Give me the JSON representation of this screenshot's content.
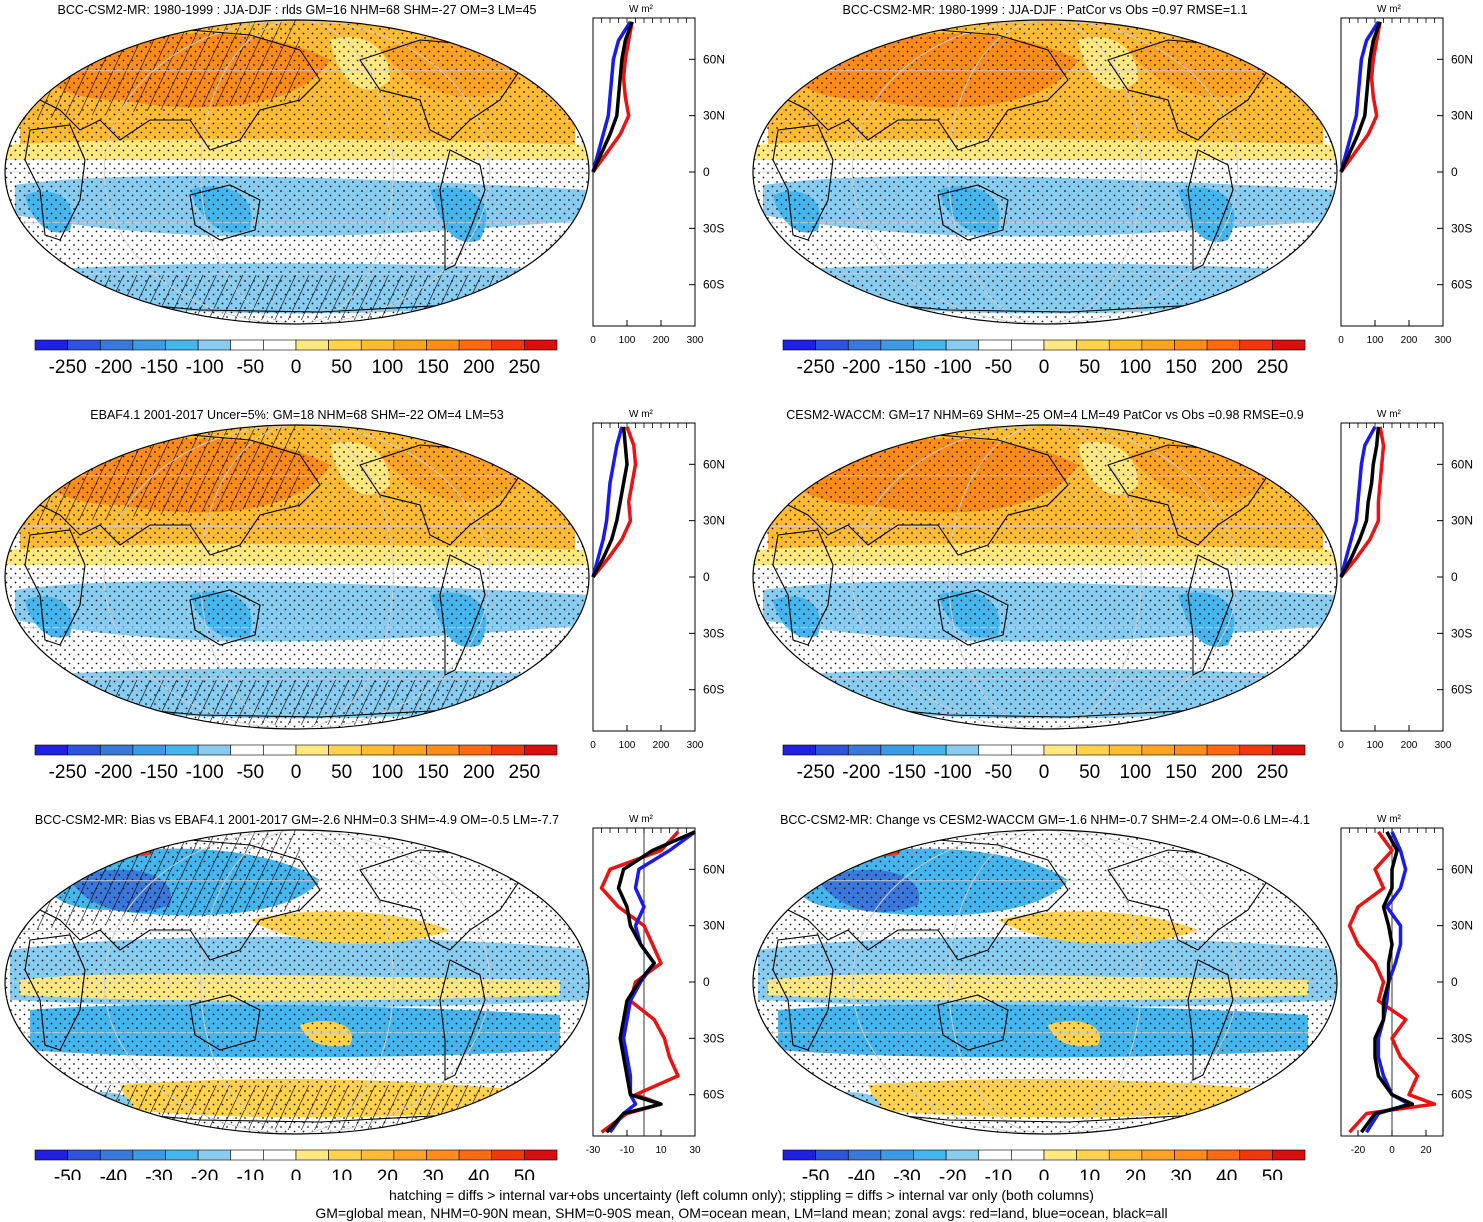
{
  "figure": {
    "footer_line1": "hatching = diffs > internal var+obs uncertainty (left column only); stippling = diffs > internal var only (both columns)",
    "footer_line2": "GM=global mean, NHM=0-90N mean, SHM=0-90S mean, OM=ocean mean, LM=land mean; zonal avgs: red=land, blue=ocean, black=all"
  },
  "colors": {
    "land_line": "#ee1111",
    "ocean_line": "#1a1aee",
    "all_line": "#000000",
    "map_ocean_fill": "#ffffff",
    "continent_outline": "#000000"
  },
  "panels": [
    {
      "title": "BCC-CSM2-MR: 1980-1999 : JJA-DJF : rlds GM=16 NHM=68 SHM=-27 OM=3 LM=45",
      "unit": "W m²",
      "xlim": [
        0,
        300
      ],
      "xticks": [
        "0",
        "100",
        "200",
        "300"
      ],
      "lat_ticks": [
        "60N",
        "30N",
        "0",
        "30S",
        "60S"
      ],
      "cb_labels": [
        "-250",
        "-200",
        "-150",
        "-100",
        "-50",
        "0",
        "50",
        "100",
        "150",
        "200",
        "250"
      ],
      "cb_colors": [
        "#2020e0",
        "#2e53dd",
        "#3a78dc",
        "#3d9be6",
        "#45b5ee",
        "#88ccf0",
        "#ffffff",
        "#ffffff",
        "#ffe880",
        "#ffd24d",
        "#ffbb33",
        "#ffa324",
        "#ff8c1a",
        "#ff6a10",
        "#f0380b",
        "#d90f0f"
      ],
      "zonal": [
        {
          "name": "land",
          "lat": [
            0,
            10,
            20,
            30,
            40,
            50,
            60,
            70,
            80
          ],
          "values": [
            0,
            40,
            80,
            105,
            95,
            90,
            95,
            105,
            115
          ]
        },
        {
          "name": "ocean",
          "lat": [
            0,
            10,
            20,
            30,
            40,
            50,
            60,
            70,
            80
          ],
          "values": [
            0,
            15,
            30,
            45,
            50,
            55,
            60,
            75,
            110
          ]
        },
        {
          "name": "all",
          "lat": [
            0,
            10,
            20,
            30,
            40,
            50,
            60,
            70,
            80
          ],
          "values": [
            0,
            25,
            50,
            70,
            75,
            80,
            85,
            95,
            115
          ]
        }
      ]
    },
    {
      "title": "BCC-CSM2-MR: 1980-1999 : JJA-DJF : PatCor vs Obs =0.97 RMSE=1.1",
      "unit": "W m²",
      "xlim": [
        0,
        300
      ],
      "xticks": [
        "0",
        "100",
        "200",
        "300"
      ],
      "lat_ticks": [
        "60N",
        "30N",
        "0",
        "30S",
        "60S"
      ],
      "cb_labels": [
        "-250",
        "-200",
        "-150",
        "-100",
        "-50",
        "0",
        "50",
        "100",
        "150",
        "200",
        "250"
      ],
      "cb_colors": [
        "#2020e0",
        "#2e53dd",
        "#3a78dc",
        "#3d9be6",
        "#45b5ee",
        "#88ccf0",
        "#ffffff",
        "#ffffff",
        "#ffe880",
        "#ffd24d",
        "#ffbb33",
        "#ffa324",
        "#ff8c1a",
        "#ff6a10",
        "#f0380b",
        "#d90f0f"
      ],
      "zonal": [
        {
          "name": "land",
          "lat": [
            0,
            10,
            20,
            30,
            40,
            50,
            60,
            70,
            80
          ],
          "values": [
            0,
            40,
            80,
            105,
            95,
            90,
            95,
            105,
            115
          ]
        },
        {
          "name": "ocean",
          "lat": [
            0,
            10,
            20,
            30,
            40,
            50,
            60,
            70,
            80
          ],
          "values": [
            0,
            15,
            30,
            45,
            50,
            55,
            60,
            75,
            110
          ]
        },
        {
          "name": "all",
          "lat": [
            0,
            10,
            20,
            30,
            40,
            50,
            60,
            70,
            80
          ],
          "values": [
            0,
            25,
            50,
            70,
            75,
            80,
            85,
            95,
            115
          ]
        }
      ]
    },
    {
      "title": "EBAF4.1 2001-2017 Uncer=5%: GM=18 NHM=68 SHM=-22 OM=4 LM=53",
      "unit": "W m²",
      "xlim": [
        0,
        300
      ],
      "xticks": [
        "0",
        "100",
        "200",
        "300"
      ],
      "lat_ticks": [
        "60N",
        "30N",
        "0",
        "30S",
        "60S"
      ],
      "cb_labels": [
        "-250",
        "-200",
        "-150",
        "-100",
        "-50",
        "0",
        "50",
        "100",
        "150",
        "200",
        "250"
      ],
      "cb_colors": [
        "#2020e0",
        "#2e53dd",
        "#3a78dc",
        "#3d9be6",
        "#45b5ee",
        "#88ccf0",
        "#ffffff",
        "#ffffff",
        "#ffe880",
        "#ffd24d",
        "#ffbb33",
        "#ffa324",
        "#ff8c1a",
        "#ff6a10",
        "#f0380b",
        "#d90f0f"
      ],
      "zonal": [
        {
          "name": "land",
          "lat": [
            0,
            10,
            20,
            30,
            40,
            50,
            60,
            70,
            80
          ],
          "values": [
            0,
            45,
            85,
            110,
            105,
            115,
            125,
            120,
            100
          ]
        },
        {
          "name": "ocean",
          "lat": [
            0,
            10,
            20,
            30,
            40,
            50,
            60,
            70,
            80
          ],
          "values": [
            0,
            15,
            30,
            40,
            45,
            50,
            60,
            70,
            85
          ]
        },
        {
          "name": "all",
          "lat": [
            0,
            10,
            20,
            30,
            40,
            50,
            60,
            70,
            80
          ],
          "values": [
            0,
            30,
            55,
            70,
            80,
            90,
            100,
            95,
            90
          ]
        }
      ]
    },
    {
      "title": "CESM2-WACCM: GM=17 NHM=69 SHM=-25 OM=4 LM=49 PatCor vs Obs =0.98 RMSE=0.9",
      "unit": "W m²",
      "xlim": [
        0,
        300
      ],
      "xticks": [
        "0",
        "100",
        "200",
        "300"
      ],
      "lat_ticks": [
        "60N",
        "30N",
        "0",
        "30S",
        "60S"
      ],
      "cb_labels": [
        "-250",
        "-200",
        "-150",
        "-100",
        "-50",
        "0",
        "50",
        "100",
        "150",
        "200",
        "250"
      ],
      "cb_colors": [
        "#2020e0",
        "#2e53dd",
        "#3a78dc",
        "#3d9be6",
        "#45b5ee",
        "#88ccf0",
        "#ffffff",
        "#ffffff",
        "#ffe880",
        "#ffd24d",
        "#ffbb33",
        "#ffa324",
        "#ff8c1a",
        "#ff6a10",
        "#f0380b",
        "#d90f0f"
      ],
      "zonal": [
        {
          "name": "land",
          "lat": [
            0,
            10,
            20,
            30,
            40,
            50,
            60,
            70,
            80
          ],
          "values": [
            0,
            45,
            85,
            110,
            110,
            115,
            120,
            125,
            115
          ]
        },
        {
          "name": "ocean",
          "lat": [
            0,
            10,
            20,
            30,
            40,
            50,
            60,
            70,
            80
          ],
          "values": [
            0,
            15,
            30,
            45,
            50,
            55,
            60,
            70,
            100
          ]
        },
        {
          "name": "all",
          "lat": [
            0,
            10,
            20,
            30,
            40,
            50,
            60,
            70,
            80
          ],
          "values": [
            0,
            30,
            55,
            75,
            80,
            90,
            95,
            105,
            110
          ]
        }
      ]
    },
    {
      "title": "BCC-CSM2-MR: Bias vs EBAF4.1 2001-2017 GM=-2.6 NHM=0.3 SHM=-4.9 OM=-0.5 LM=-7.7",
      "unit": "W m²",
      "xlim": [
        -30,
        30
      ],
      "xticks": [
        "-30",
        "-10",
        "10",
        "30"
      ],
      "lat_ticks": [
        "60N",
        "30N",
        "0",
        "30S",
        "60S"
      ],
      "cb_labels": [
        "-50",
        "-40",
        "-30",
        "-20",
        "-10",
        "0",
        "10",
        "20",
        "30",
        "40",
        "50"
      ],
      "cb_colors": [
        "#2020e0",
        "#2e53dd",
        "#3a78dc",
        "#3d9be6",
        "#45b5ee",
        "#88ccf0",
        "#ffffff",
        "#ffffff",
        "#ffe880",
        "#ffd24d",
        "#ffbb33",
        "#ffa324",
        "#ff8c1a",
        "#ff6a10",
        "#f0380b",
        "#d90f0f"
      ],
      "zonal": [
        {
          "name": "land",
          "lat": [
            -80,
            -70,
            -65,
            -60,
            -50,
            -40,
            -30,
            -20,
            -10,
            0,
            10,
            20,
            30,
            40,
            50,
            60,
            70,
            80
          ],
          "values": [
            -25,
            -10,
            10,
            -5,
            20,
            15,
            12,
            6,
            -8,
            -5,
            10,
            5,
            0,
            -15,
            -25,
            -20,
            10,
            20
          ]
        },
        {
          "name": "ocean",
          "lat": [
            -80,
            -70,
            -65,
            -60,
            -50,
            -40,
            -30,
            -20,
            -10,
            0,
            10,
            20,
            30,
            40,
            50,
            60,
            70,
            80
          ],
          "values": [
            -20,
            -12,
            -5,
            -8,
            -8,
            -10,
            -12,
            -10,
            -8,
            -2,
            6,
            -2,
            -5,
            0,
            -5,
            -3,
            15,
            30
          ]
        },
        {
          "name": "all",
          "lat": [
            -80,
            -70,
            -65,
            -60,
            -50,
            -40,
            -30,
            -20,
            -10,
            0,
            10,
            20,
            30,
            40,
            50,
            60,
            70,
            80
          ],
          "values": [
            -22,
            -12,
            10,
            -8,
            -10,
            -12,
            -14,
            -12,
            -10,
            -3,
            6,
            -2,
            -8,
            -10,
            -15,
            -12,
            5,
            30
          ]
        }
      ]
    },
    {
      "title": "BCC-CSM2-MR: Change vs CESM2-WACCM GM=-1.6 NHM=-0.7 SHM=-2.4 OM=-0.6 LM=-4.1",
      "unit": "W m²",
      "xlim": [
        -30,
        30
      ],
      "xticks": [
        "-20",
        "0",
        "20"
      ],
      "lat_ticks": [
        "60N",
        "30N",
        "0",
        "30S",
        "60S"
      ],
      "cb_labels": [
        "-50",
        "-40",
        "-30",
        "-20",
        "-10",
        "0",
        "10",
        "20",
        "30",
        "40",
        "50"
      ],
      "cb_colors": [
        "#2020e0",
        "#2e53dd",
        "#3a78dc",
        "#3d9be6",
        "#45b5ee",
        "#88ccf0",
        "#ffffff",
        "#ffffff",
        "#ffe880",
        "#ffd24d",
        "#ffbb33",
        "#ffa324",
        "#ff8c1a",
        "#ff6a10",
        "#f0380b",
        "#d90f0f"
      ],
      "zonal": [
        {
          "name": "land",
          "lat": [
            -80,
            -70,
            -65,
            -60,
            -50,
            -40,
            -30,
            -20,
            -10,
            0,
            10,
            20,
            30,
            40,
            50,
            60,
            70,
            80
          ],
          "values": [
            -25,
            -15,
            25,
            10,
            15,
            5,
            0,
            8,
            -8,
            -5,
            -10,
            -20,
            -25,
            -20,
            -5,
            -10,
            0,
            -8
          ]
        },
        {
          "name": "ocean",
          "lat": [
            -80,
            -70,
            -65,
            -60,
            -50,
            -40,
            -30,
            -20,
            -10,
            0,
            10,
            20,
            30,
            40,
            50,
            60,
            70,
            80
          ],
          "values": [
            -15,
            -8,
            10,
            0,
            -5,
            -8,
            -8,
            -5,
            -3,
            -2,
            2,
            5,
            5,
            -3,
            5,
            8,
            5,
            0
          ]
        },
        {
          "name": "all",
          "lat": [
            -80,
            -70,
            -65,
            -60,
            -50,
            -40,
            -30,
            -20,
            -10,
            0,
            10,
            20,
            30,
            40,
            50,
            60,
            70,
            80
          ],
          "values": [
            -18,
            -10,
            12,
            0,
            -8,
            -10,
            -10,
            -5,
            -5,
            -2,
            -2,
            0,
            -2,
            -5,
            0,
            0,
            3,
            -3
          ]
        }
      ]
    }
  ],
  "chart_data": [
    {
      "type": "heatmap",
      "title": "BCC-CSM2-MR: 1980-1999 : JJA-DJF : rlds GM=16 NHM=68 SHM=-27 OM=3 LM=45",
      "colorbar_ticks": [
        -250,
        -200,
        -150,
        -100,
        -50,
        0,
        50,
        100,
        150,
        200,
        250
      ],
      "stats": {
        "GM": 16,
        "NHM": 68,
        "SHM": -27,
        "OM": 3,
        "LM": 45
      }
    },
    {
      "type": "heatmap",
      "title": "BCC-CSM2-MR: 1980-1999 : JJA-DJF : PatCor vs Obs =0.97 RMSE=1.1",
      "colorbar_ticks": [
        -250,
        -200,
        -150,
        -100,
        -50,
        0,
        50,
        100,
        150,
        200,
        250
      ],
      "stats": {
        "PatCor": 0.97,
        "RMSE": 1.1
      }
    },
    {
      "type": "heatmap",
      "title": "EBAF4.1 2001-2017 Uncer=5%: GM=18 NHM=68 SHM=-22 OM=4 LM=53",
      "colorbar_ticks": [
        -250,
        -200,
        -150,
        -100,
        -50,
        0,
        50,
        100,
        150,
        200,
        250
      ],
      "stats": {
        "GM": 18,
        "NHM": 68,
        "SHM": -22,
        "OM": 4,
        "LM": 53
      }
    },
    {
      "type": "heatmap",
      "title": "CESM2-WACCM: GM=17 NHM=69 SHM=-25 OM=4 LM=49 PatCor vs Obs =0.98 RMSE=0.9",
      "colorbar_ticks": [
        -250,
        -200,
        -150,
        -100,
        -50,
        0,
        50,
        100,
        150,
        200,
        250
      ],
      "stats": {
        "GM": 17,
        "NHM": 69,
        "SHM": -25,
        "OM": 4,
        "LM": 49,
        "PatCor": 0.98,
        "RMSE": 0.9
      }
    },
    {
      "type": "heatmap",
      "title": "BCC-CSM2-MR: Bias vs EBAF4.1 2001-2017 GM=-2.6 NHM=0.3 SHM=-4.9 OM=-0.5 LM=-7.7",
      "colorbar_ticks": [
        -50,
        -40,
        -30,
        -20,
        -10,
        0,
        10,
        20,
        30,
        40,
        50
      ],
      "stats": {
        "GM": -2.6,
        "NHM": 0.3,
        "SHM": -4.9,
        "OM": -0.5,
        "LM": -7.7
      }
    },
    {
      "type": "heatmap",
      "title": "BCC-CSM2-MR: Change vs CESM2-WACCM GM=-1.6 NHM=-0.7 SHM=-2.4 OM=-0.6 LM=-4.1",
      "colorbar_ticks": [
        -50,
        -40,
        -30,
        -20,
        -10,
        0,
        10,
        20,
        30,
        40,
        50
      ],
      "stats": {
        "GM": -1.6,
        "NHM": -0.7,
        "SHM": -2.4,
        "OM": -0.6,
        "LM": -4.1
      }
    }
  ]
}
